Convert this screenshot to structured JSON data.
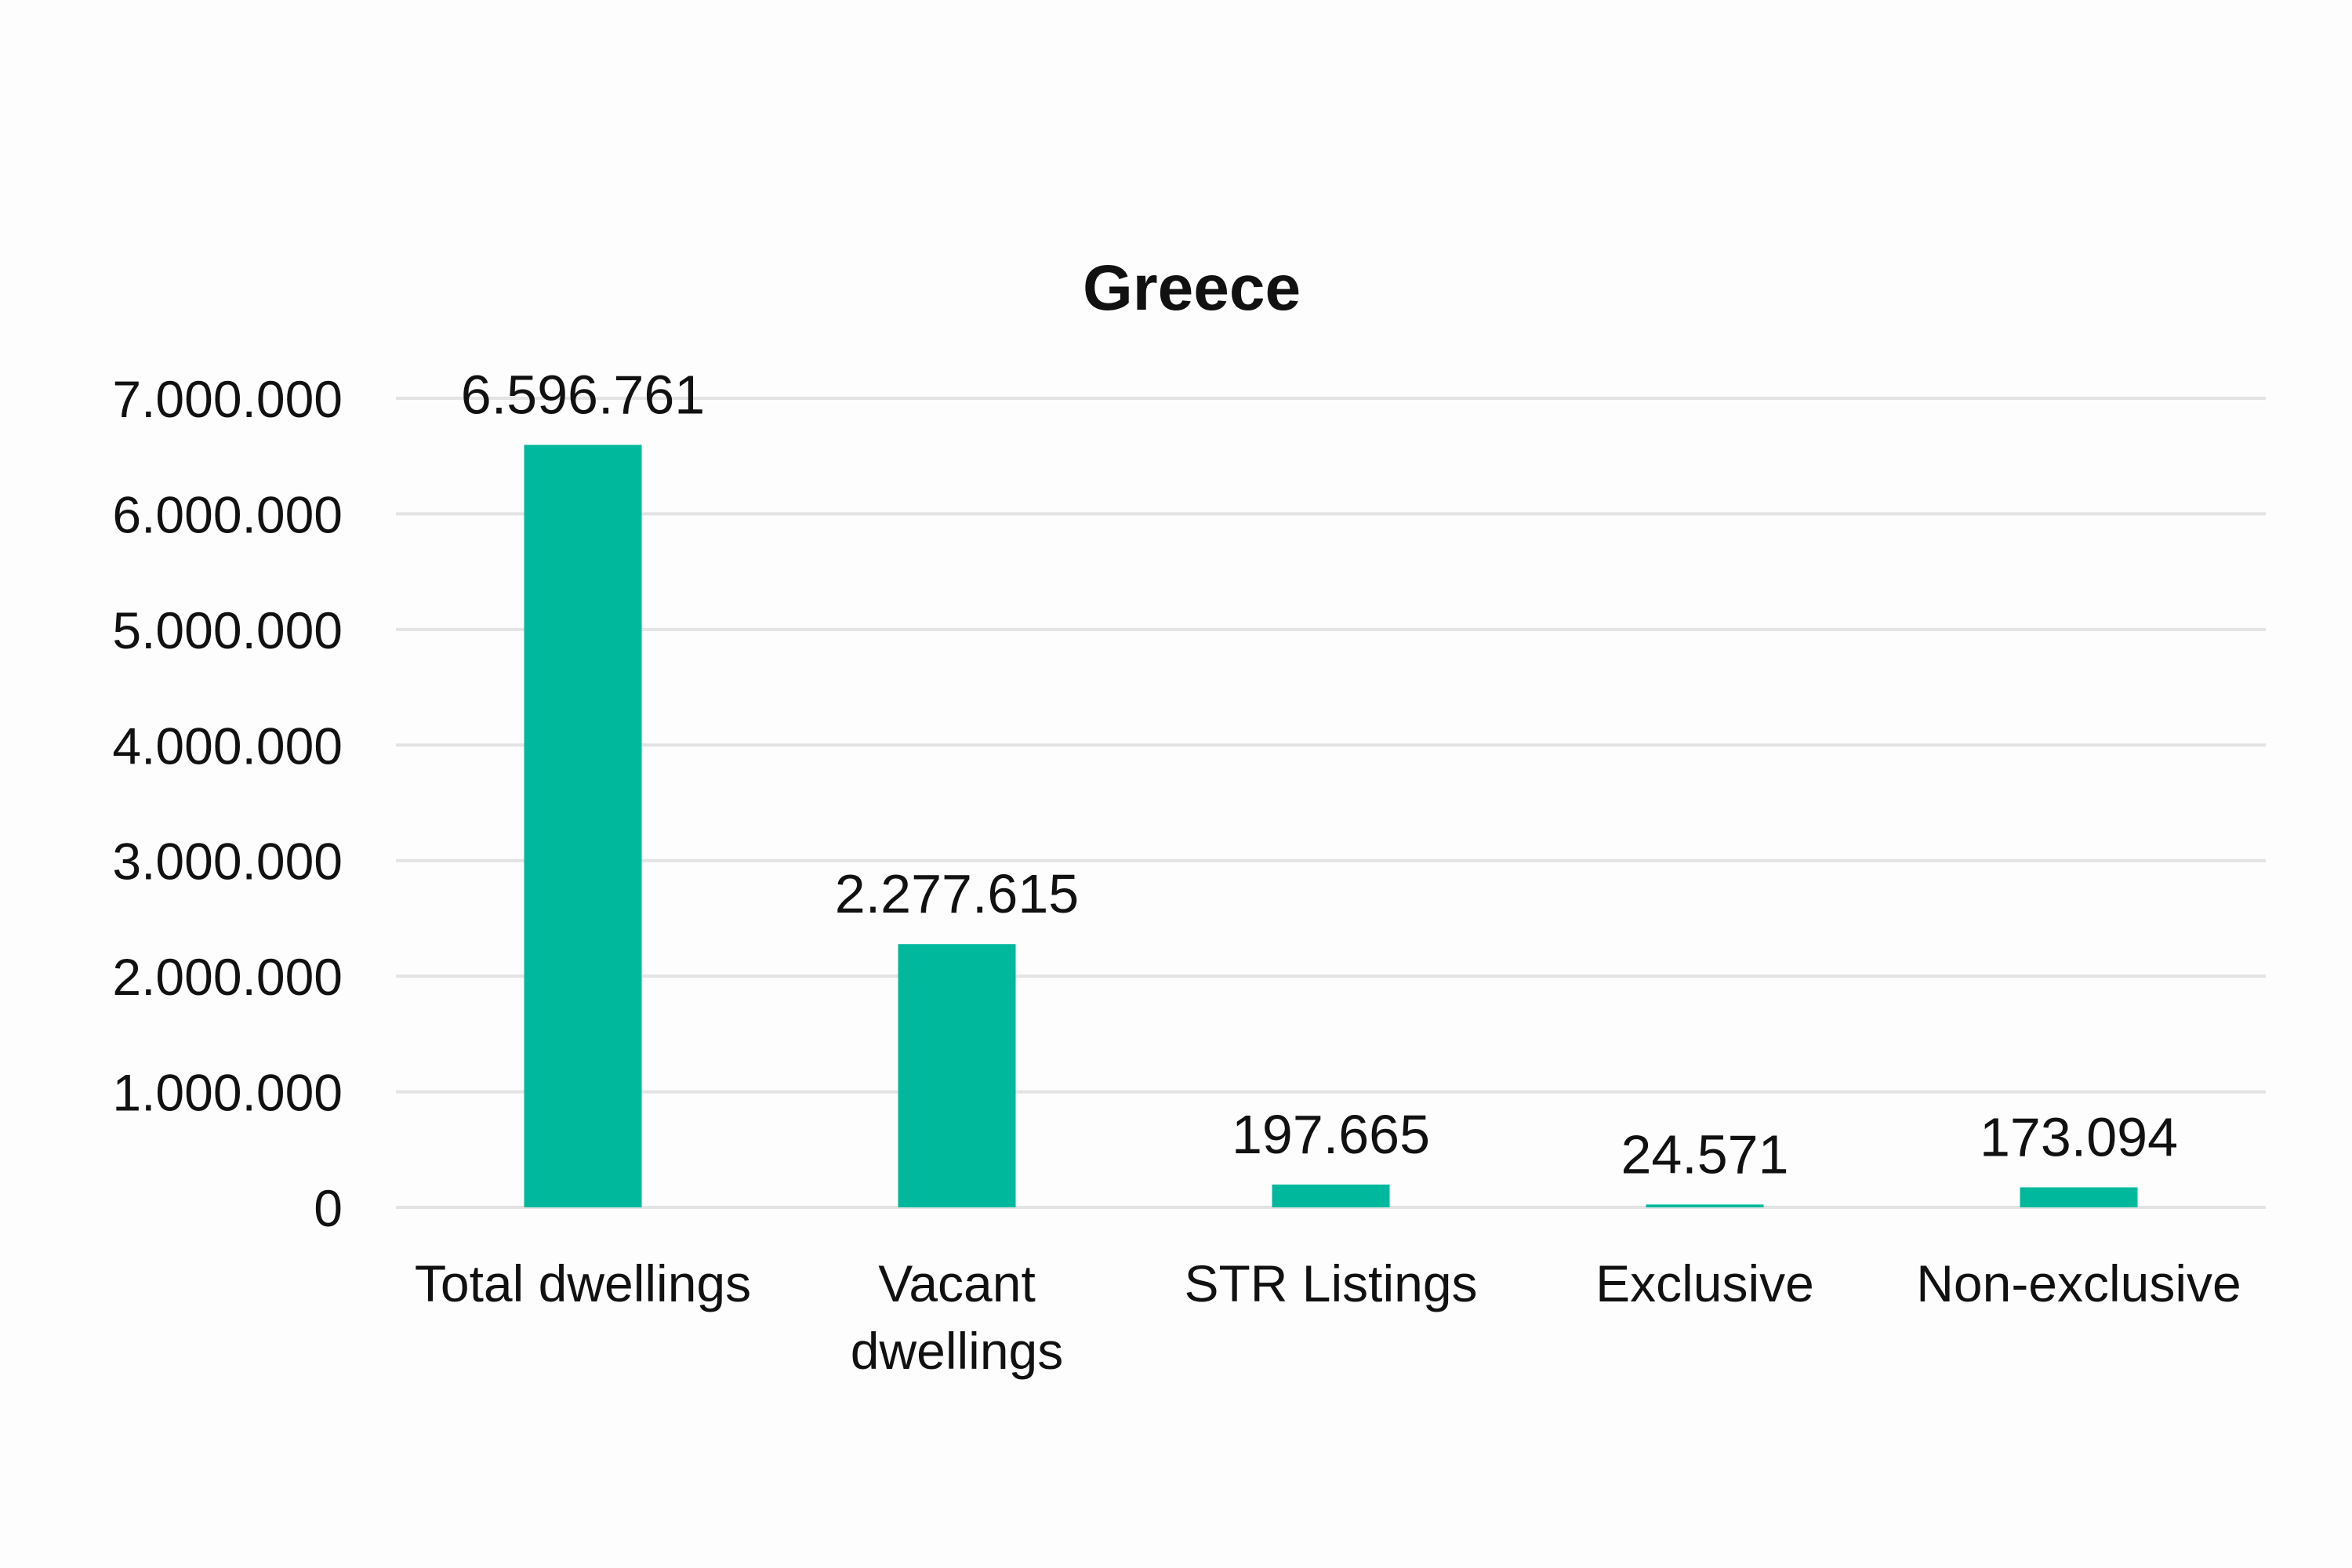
{
  "chart_data": {
    "type": "bar",
    "title": "Greece",
    "categories": [
      "Total dwellings",
      "Vacant dwellings",
      "STR Listings",
      "Exclusive",
      "Non-exclusive"
    ],
    "category_lines": [
      [
        "Total dwellings"
      ],
      [
        "Vacant",
        "dwellings"
      ],
      [
        "STR Listings"
      ],
      [
        "Exclusive"
      ],
      [
        "Non-exclusive"
      ]
    ],
    "values": [
      6596761,
      2277615,
      197665,
      24571,
      173094
    ],
    "data_labels": [
      "6.596.761",
      "2.277.615",
      "197.665",
      "24.571",
      "173.094"
    ],
    "ylim": [
      0,
      7000000
    ],
    "yticks": [
      0,
      1000000,
      2000000,
      3000000,
      4000000,
      5000000,
      6000000,
      7000000
    ],
    "ytick_labels": [
      "0",
      "1.000.000",
      "2.000.000",
      "3.000.000",
      "4.000.000",
      "5.000.000",
      "6.000.000",
      "7.000.000"
    ],
    "xlabel": "",
    "ylabel": "",
    "grid": true,
    "legend": "none",
    "colors": {
      "bar": "#00b89c",
      "grid": "#e3e3e3",
      "text": "#111111",
      "background": "#fdfdfd"
    }
  }
}
